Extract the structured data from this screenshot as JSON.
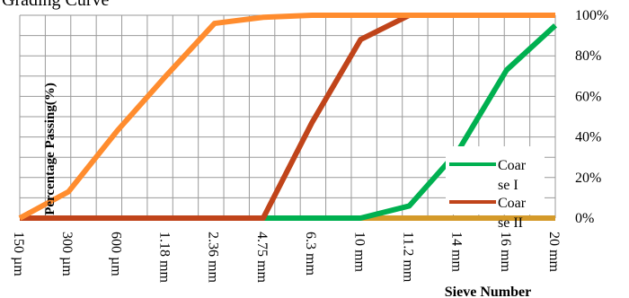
{
  "chart_data": {
    "type": "line",
    "title": "Grading Curve",
    "xlabel": "Sieve Number",
    "ylabel": "Percentage Passing(%)",
    "ylim": [
      0,
      100
    ],
    "y_ticks": [
      "0%",
      "20%",
      "40%",
      "60%",
      "80%",
      "100%"
    ],
    "y_axis_side": "right",
    "grid": true,
    "legend_position": "bottom-right",
    "categories": [
      "150 µm",
      "300 µm",
      "600 µm",
      "1.18 mm",
      "2.36 mm",
      "4.75 mm",
      "6.3 mm",
      "10 mm",
      "11.2 mm",
      "14 mm",
      "16 mm",
      "20 mm"
    ],
    "series": [
      {
        "name": "Coarse I",
        "legend_lines": [
          "Coar",
          "se I"
        ],
        "color": "#00b050",
        "values": [
          0,
          0,
          0,
          0,
          0,
          0,
          0,
          0,
          6,
          33,
          73,
          95
        ]
      },
      {
        "name": "Coarse II",
        "legend_lines": [
          "Coar",
          "se II"
        ],
        "color": "#c0441a",
        "values": [
          0,
          0,
          0,
          0,
          0,
          0,
          47,
          88,
          100,
          100,
          100,
          100
        ]
      },
      {
        "name": "",
        "color": "#ff8c2e",
        "values": [
          0,
          13,
          43,
          70,
          96,
          99,
          100,
          100,
          100,
          100,
          100,
          100
        ]
      },
      {
        "name": "",
        "color": "#d49a2a",
        "values": [
          0,
          0,
          0,
          0,
          0,
          0,
          0,
          0,
          0,
          0,
          0,
          0
        ]
      }
    ]
  }
}
